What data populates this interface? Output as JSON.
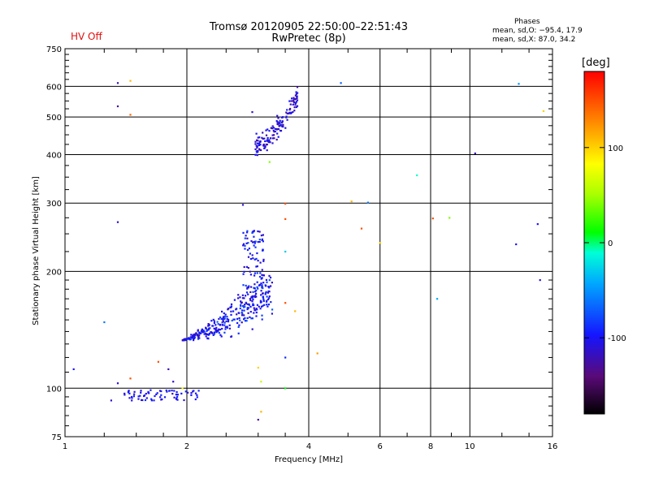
{
  "chart_data": {
    "type": "scatter",
    "title": "Tromsø 20120905 22:50:00–22:51:43",
    "subtitle": "RwPretec (8p)",
    "status": "HV Off",
    "status_color": "#e01010",
    "phases": {
      "heading": "Phases",
      "o_stats": "mean, sd,O: −95.4, 17.9",
      "x_stats": "mean, sd,X:  87.0, 34.2"
    },
    "xlabel": "Frequency [MHz]",
    "ylabel": "Stationary phase Virtual Height [km]",
    "xscale": "log",
    "yscale": "log",
    "xlim": [
      1,
      16
    ],
    "ylim": [
      75,
      750
    ],
    "xticks": [
      1,
      2,
      4,
      6,
      8,
      10,
      16
    ],
    "yticks": [
      75,
      100,
      200,
      300,
      400,
      500,
      600,
      750
    ],
    "grid": true,
    "colorbar": {
      "label": "[deg]",
      "range": [
        -180,
        180
      ],
      "ticks": [
        100,
        0,
        -100
      ],
      "placement": "right"
    },
    "points": [
      [
        1.05,
        112,
        -100
      ],
      [
        1.3,
        93,
        -110
      ],
      [
        1.35,
        612,
        -120
      ],
      [
        1.35,
        533,
        -130
      ],
      [
        1.35,
        268,
        -115
      ],
      [
        1.35,
        103,
        -110
      ],
      [
        1.25,
        148,
        -60
      ],
      [
        1.45,
        507,
        140
      ],
      [
        1.45,
        620,
        110
      ],
      [
        1.45,
        106,
        150
      ],
      [
        1.7,
        117,
        150
      ],
      [
        1.8,
        112,
        -120
      ],
      [
        1.85,
        104,
        -110
      ],
      [
        1.95,
        100,
        80
      ],
      [
        2.05,
        96,
        -95
      ],
      [
        2.75,
        297,
        -110
      ],
      [
        2.9,
        515,
        -110
      ],
      [
        3.0,
        113,
        100
      ],
      [
        3.05,
        104,
        60
      ],
      [
        3.05,
        87,
        110
      ],
      [
        3.0,
        83,
        -130
      ],
      [
        3.2,
        383,
        40
      ],
      [
        3.5,
        299,
        150
      ],
      [
        3.5,
        273,
        150
      ],
      [
        3.5,
        225,
        -30
      ],
      [
        3.5,
        166,
        150
      ],
      [
        3.5,
        100,
        10
      ],
      [
        3.5,
        120,
        -90
      ],
      [
        3.7,
        158,
        110
      ],
      [
        4.2,
        123,
        120
      ],
      [
        4.8,
        612,
        -70
      ],
      [
        5.1,
        303,
        110
      ],
      [
        5.4,
        258,
        150
      ],
      [
        5.6,
        301,
        -60
      ],
      [
        6.0,
        237,
        100
      ],
      [
        7.4,
        354,
        -10
      ],
      [
        8.1,
        274,
        150
      ],
      [
        8.3,
        170,
        -40
      ],
      [
        8.9,
        275,
        40
      ],
      [
        10.3,
        403,
        -120
      ],
      [
        13.0,
        235,
        -100
      ],
      [
        13.2,
        609,
        -50
      ],
      [
        14.7,
        265,
        -100
      ],
      [
        14.9,
        190,
        -110
      ],
      [
        15.2,
        518,
        100
      ]
    ],
    "clusters": [
      {
        "phase_mean": -100,
        "phase_sd": 18,
        "shape": "band",
        "x_range": [
          1.95,
          3.25
        ],
        "y_range": [
          133,
          180
        ],
        "upper_edge_y": [
          255,
          250
        ]
      },
      {
        "phase_mean": -110,
        "phase_sd": 15,
        "shape": "blob",
        "x_range": [
          2.95,
          3.75
        ],
        "y_range": [
          420,
          565
        ]
      },
      {
        "phase_mean": -100,
        "phase_sd": 10,
        "shape": "flat",
        "x_range": [
          1.4,
          2.15
        ],
        "y_range": [
          93,
          99
        ]
      }
    ]
  }
}
